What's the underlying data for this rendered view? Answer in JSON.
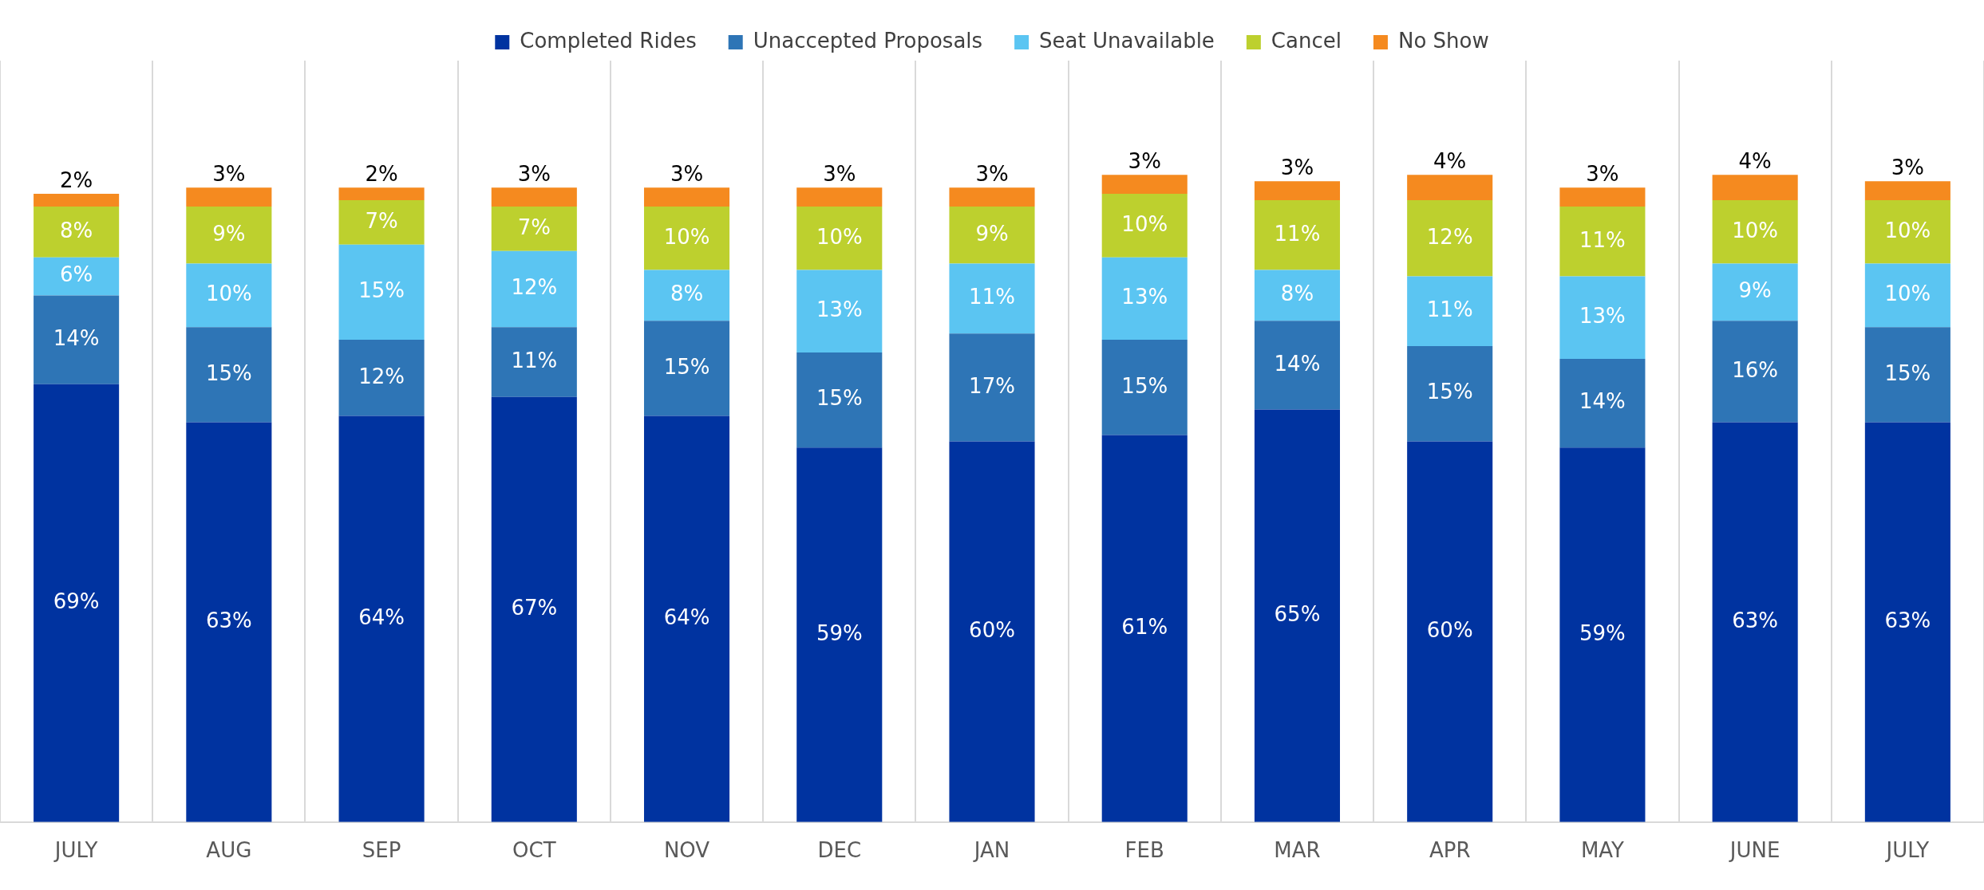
{
  "chart_data": {
    "type": "bar",
    "stacked": true,
    "categories": [
      "JULY",
      "AUG",
      "SEP",
      "OCT",
      "NOV",
      "DEC",
      "JAN",
      "FEB",
      "MAR",
      "APR",
      "MAY",
      "JUNE",
      "JULY"
    ],
    "series": [
      {
        "name": "Completed Rides",
        "color": "#0033a0",
        "values": [
          69,
          63,
          64,
          67,
          64,
          59,
          60,
          61,
          65,
          60,
          59,
          63,
          63
        ],
        "value_labels": [
          "69%",
          "63%",
          "64%",
          "67%",
          "64%",
          "59%",
          "60%",
          "61%",
          "65%",
          "60%",
          "59%",
          "63%",
          "63%"
        ]
      },
      {
        "name": "Unaccepted Proposals",
        "color": "#2e75b6",
        "values": [
          14,
          15,
          12,
          11,
          15,
          15,
          17,
          15,
          14,
          15,
          14,
          16,
          15
        ],
        "value_labels": [
          "14%",
          "15%",
          "12%",
          "11%",
          "15%",
          "15%",
          "17%",
          "15%",
          "14%",
          "15%",
          "14%",
          "16%",
          "15%"
        ]
      },
      {
        "name": "Seat Unavailable",
        "color": "#5bc5f2",
        "values": [
          6,
          10,
          15,
          12,
          8,
          13,
          11,
          13,
          8,
          11,
          13,
          9,
          10
        ],
        "value_labels": [
          "6%",
          "10%",
          "15%",
          "12%",
          "8%",
          "13%",
          "11%",
          "13%",
          "8%",
          "11%",
          "13%",
          "9%",
          "10%"
        ]
      },
      {
        "name": "Cancel",
        "color": "#bdd02e",
        "values": [
          8,
          9,
          7,
          7,
          10,
          10,
          9,
          10,
          11,
          12,
          11,
          10,
          10
        ],
        "value_labels": [
          "8%",
          "9%",
          "7%",
          "7%",
          "10%",
          "10%",
          "9%",
          "10%",
          "11%",
          "12%",
          "11%",
          "10%",
          "10%"
        ]
      },
      {
        "name": "No Show",
        "color": "#f58a1f",
        "values": [
          2,
          3,
          2,
          3,
          3,
          3,
          3,
          3,
          3,
          4,
          3,
          4,
          3
        ],
        "value_labels": [
          "2%",
          "3%",
          "2%",
          "3%",
          "3%",
          "3%",
          "3%",
          "3%",
          "3%",
          "4%",
          "3%",
          "4%",
          "3%"
        ]
      }
    ],
    "grid": "x",
    "legend": "top",
    "tick_labels": "x"
  }
}
